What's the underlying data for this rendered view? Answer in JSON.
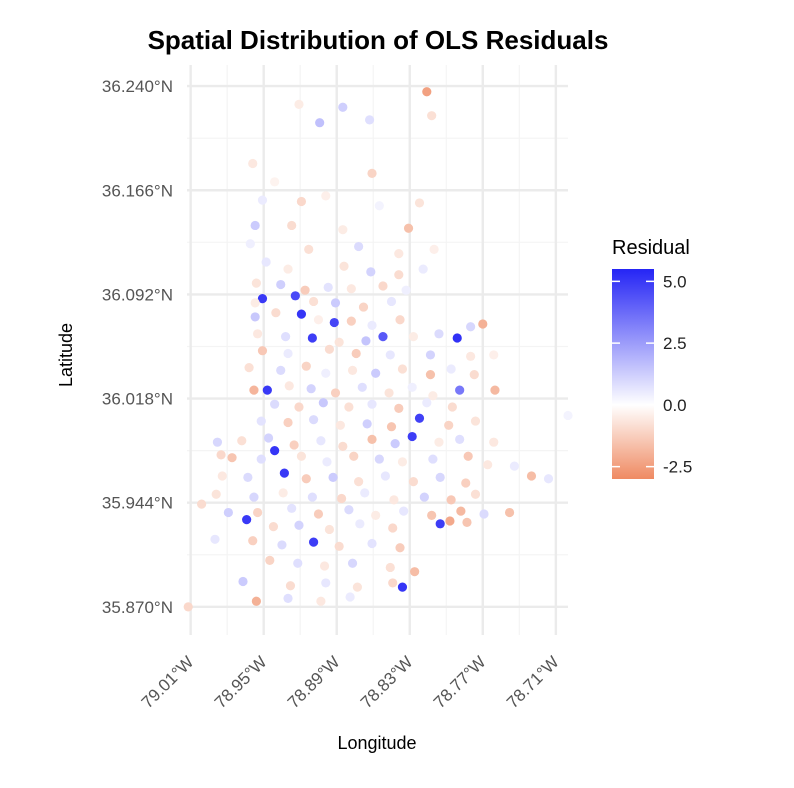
{
  "chart_data": {
    "type": "scatter",
    "title": "Spatial Distribution of OLS Residuals",
    "xlabel": "Longitude",
    "ylabel": "Latitude",
    "xlim": [
      -79.013,
      -78.7
    ],
    "ylim": [
      35.85,
      36.255
    ],
    "x_ticks": [
      -79.01,
      -78.95,
      -78.89,
      -78.83,
      -78.77,
      -78.71
    ],
    "x_tick_labels": [
      "79.01°W",
      "78.95°W",
      "78.89°W",
      "78.83°W",
      "78.77°W",
      "78.71°W"
    ],
    "y_ticks": [
      35.87,
      35.944,
      36.018,
      36.092,
      36.166,
      36.24
    ],
    "y_tick_labels": [
      "35.870°N",
      "35.944°N",
      "36.018°N",
      "36.092°N",
      "36.166°N",
      "36.240°N"
    ],
    "grid": true,
    "legend": {
      "title": "Residual",
      "placement": "right",
      "ticks": [
        5.0,
        2.5,
        0.0,
        -2.5
      ],
      "tick_labels": [
        "5.0",
        "2.5",
        "0.0",
        "-2.5"
      ],
      "range": [
        -3.0,
        5.5
      ],
      "color_low": "#ef8a62",
      "color_mid": "#ffffff",
      "color_high": "#2525f5"
    },
    "points": [
      {
        "lon": -78.816,
        "lat": 36.236,
        "residual": -2.4
      },
      {
        "lon": -78.921,
        "lat": 36.227,
        "residual": -0.5
      },
      {
        "lon": -78.885,
        "lat": 36.225,
        "residual": 1.2
      },
      {
        "lon": -78.904,
        "lat": 36.214,
        "residual": 1.6
      },
      {
        "lon": -78.863,
        "lat": 36.216,
        "residual": 0.8
      },
      {
        "lon": -78.812,
        "lat": 36.219,
        "residual": -0.8
      },
      {
        "lon": -78.959,
        "lat": 36.185,
        "residual": -0.6
      },
      {
        "lon": -78.861,
        "lat": 36.178,
        "residual": -1.1
      },
      {
        "lon": -78.941,
        "lat": 36.172,
        "residual": -0.3
      },
      {
        "lon": -78.899,
        "lat": 36.162,
        "residual": -0.4
      },
      {
        "lon": -78.951,
        "lat": 36.159,
        "residual": 0.5
      },
      {
        "lon": -78.919,
        "lat": 36.158,
        "residual": -1.0
      },
      {
        "lon": -78.822,
        "lat": 36.157,
        "residual": -0.7
      },
      {
        "lon": -78.855,
        "lat": 36.155,
        "residual": 0.3
      },
      {
        "lon": -78.957,
        "lat": 36.141,
        "residual": 1.3
      },
      {
        "lon": -78.927,
        "lat": 36.141,
        "residual": -0.9
      },
      {
        "lon": -78.885,
        "lat": 36.138,
        "residual": -0.5
      },
      {
        "lon": -78.831,
        "lat": 36.139,
        "residual": -1.6
      },
      {
        "lon": -78.961,
        "lat": 36.128,
        "residual": 0.4
      },
      {
        "lon": -78.913,
        "lat": 36.124,
        "residual": -0.8
      },
      {
        "lon": -78.872,
        "lat": 36.126,
        "residual": 0.9
      },
      {
        "lon": -78.839,
        "lat": 36.121,
        "residual": -0.6
      },
      {
        "lon": -78.81,
        "lat": 36.124,
        "residual": -0.4
      },
      {
        "lon": -78.948,
        "lat": 36.115,
        "residual": 0.6
      },
      {
        "lon": -78.93,
        "lat": 36.11,
        "residual": -0.5
      },
      {
        "lon": -78.884,
        "lat": 36.112,
        "residual": -0.7
      },
      {
        "lon": -78.862,
        "lat": 36.108,
        "residual": 1.1
      },
      {
        "lon": -78.839,
        "lat": 36.106,
        "residual": -0.9
      },
      {
        "lon": -78.819,
        "lat": 36.11,
        "residual": 0.5
      },
      {
        "lon": -78.956,
        "lat": 36.1,
        "residual": -0.7
      },
      {
        "lon": -78.936,
        "lat": 36.099,
        "residual": 1.2
      },
      {
        "lon": -78.916,
        "lat": 36.095,
        "residual": -1.3
      },
      {
        "lon": -78.897,
        "lat": 36.097,
        "residual": 0.7
      },
      {
        "lon": -78.878,
        "lat": 36.096,
        "residual": -0.6
      },
      {
        "lon": -78.852,
        "lat": 36.098,
        "residual": -1.0
      },
      {
        "lon": -78.833,
        "lat": 36.095,
        "residual": 0.4
      },
      {
        "lon": -78.951,
        "lat": 36.089,
        "residual": 5.0
      },
      {
        "lon": -78.957,
        "lat": 36.086,
        "residual": -0.5
      },
      {
        "lon": -78.924,
        "lat": 36.091,
        "residual": 4.6
      },
      {
        "lon": -78.909,
        "lat": 36.087,
        "residual": -0.8
      },
      {
        "lon": -78.891,
        "lat": 36.086,
        "residual": 1.3
      },
      {
        "lon": -78.868,
        "lat": 36.083,
        "residual": -1.1
      },
      {
        "lon": -78.845,
        "lat": 36.087,
        "residual": 0.6
      },
      {
        "lon": -78.957,
        "lat": 36.076,
        "residual": 1.4
      },
      {
        "lon": -78.94,
        "lat": 36.079,
        "residual": -0.9
      },
      {
        "lon": -78.919,
        "lat": 36.078,
        "residual": 5.1
      },
      {
        "lon": -78.905,
        "lat": 36.074,
        "residual": -0.4
      },
      {
        "lon": -78.892,
        "lat": 36.072,
        "residual": 4.7
      },
      {
        "lon": -78.878,
        "lat": 36.073,
        "residual": -1.2
      },
      {
        "lon": -78.861,
        "lat": 36.07,
        "residual": 0.5
      },
      {
        "lon": -78.838,
        "lat": 36.074,
        "residual": -1.0
      },
      {
        "lon": -78.77,
        "lat": 36.071,
        "residual": -2.0
      },
      {
        "lon": -78.78,
        "lat": 36.069,
        "residual": 1.0
      },
      {
        "lon": -78.955,
        "lat": 36.064,
        "residual": -0.6
      },
      {
        "lon": -78.932,
        "lat": 36.062,
        "residual": 0.8
      },
      {
        "lon": -78.91,
        "lat": 36.061,
        "residual": 4.9
      },
      {
        "lon": -78.888,
        "lat": 36.058,
        "residual": -0.7
      },
      {
        "lon": -78.866,
        "lat": 36.059,
        "residual": 1.5
      },
      {
        "lon": -78.852,
        "lat": 36.062,
        "residual": 4.2
      },
      {
        "lon": -78.827,
        "lat": 36.062,
        "residual": -0.5
      },
      {
        "lon": -78.806,
        "lat": 36.064,
        "residual": 0.9
      },
      {
        "lon": -78.791,
        "lat": 36.061,
        "residual": 5.2
      },
      {
        "lon": -78.951,
        "lat": 36.052,
        "residual": -1.4
      },
      {
        "lon": -78.93,
        "lat": 36.05,
        "residual": 0.5
      },
      {
        "lon": -78.896,
        "lat": 36.053,
        "residual": -0.9
      },
      {
        "lon": -78.874,
        "lat": 36.05,
        "residual": -1.3
      },
      {
        "lon": -78.846,
        "lat": 36.049,
        "residual": 0.6
      },
      {
        "lon": -78.813,
        "lat": 36.049,
        "residual": 1.1
      },
      {
        "lon": -78.78,
        "lat": 36.048,
        "residual": -0.6
      },
      {
        "lon": -78.761,
        "lat": 36.049,
        "residual": -0.4
      },
      {
        "lon": -78.962,
        "lat": 36.04,
        "residual": -0.8
      },
      {
        "lon": -78.936,
        "lat": 36.038,
        "residual": 0.9
      },
      {
        "lon": -78.915,
        "lat": 36.041,
        "residual": -1.1
      },
      {
        "lon": -78.899,
        "lat": 36.036,
        "residual": 0.4
      },
      {
        "lon": -78.877,
        "lat": 36.038,
        "residual": -0.6
      },
      {
        "lon": -78.858,
        "lat": 36.036,
        "residual": 1.3
      },
      {
        "lon": -78.836,
        "lat": 36.039,
        "residual": -0.8
      },
      {
        "lon": -78.813,
        "lat": 36.035,
        "residual": -1.6
      },
      {
        "lon": -78.796,
        "lat": 36.039,
        "residual": 0.5
      },
      {
        "lon": -78.777,
        "lat": 36.035,
        "residual": -0.9
      },
      {
        "lon": -78.958,
        "lat": 36.024,
        "residual": -1.9
      },
      {
        "lon": -78.947,
        "lat": 36.024,
        "residual": 5.0
      },
      {
        "lon": -78.929,
        "lat": 36.027,
        "residual": -0.6
      },
      {
        "lon": -78.911,
        "lat": 36.025,
        "residual": 1.1
      },
      {
        "lon": -78.891,
        "lat": 36.022,
        "residual": -1.2
      },
      {
        "lon": -78.869,
        "lat": 36.026,
        "residual": 0.8
      },
      {
        "lon": -78.847,
        "lat": 36.022,
        "residual": -0.7
      },
      {
        "lon": -78.828,
        "lat": 36.026,
        "residual": 0.4
      },
      {
        "lon": -78.811,
        "lat": 36.02,
        "residual": -0.5
      },
      {
        "lon": -78.789,
        "lat": 36.024,
        "residual": 3.4
      },
      {
        "lon": -78.76,
        "lat": 36.024,
        "residual": -1.8
      },
      {
        "lon": -78.7,
        "lat": 36.006,
        "residual": 0.3
      },
      {
        "lon": -78.941,
        "lat": 36.014,
        "residual": 0.9
      },
      {
        "lon": -78.921,
        "lat": 36.012,
        "residual": -1.0
      },
      {
        "lon": -78.901,
        "lat": 36.015,
        "residual": 1.4
      },
      {
        "lon": -78.88,
        "lat": 36.012,
        "residual": -0.8
      },
      {
        "lon": -78.861,
        "lat": 36.014,
        "residual": 0.6
      },
      {
        "lon": -78.839,
        "lat": 36.011,
        "residual": -1.3
      },
      {
        "lon": -78.816,
        "lat": 36.015,
        "residual": 0.5
      },
      {
        "lon": -78.795,
        "lat": 36.012,
        "residual": -0.9
      },
      {
        "lon": -78.952,
        "lat": 36.002,
        "residual": 0.7
      },
      {
        "lon": -78.93,
        "lat": 36.001,
        "residual": -1.2
      },
      {
        "lon": -78.909,
        "lat": 36.003,
        "residual": 0.9
      },
      {
        "lon": -78.887,
        "lat": 35.999,
        "residual": -0.6
      },
      {
        "lon": -78.865,
        "lat": 36.0,
        "residual": 1.2
      },
      {
        "lon": -78.845,
        "lat": 35.998,
        "residual": -1.5
      },
      {
        "lon": -78.822,
        "lat": 36.004,
        "residual": 4.8
      },
      {
        "lon": -78.798,
        "lat": 35.999,
        "residual": -1.1
      },
      {
        "lon": -78.776,
        "lat": 36.002,
        "residual": -0.7
      },
      {
        "lon": -78.988,
        "lat": 35.987,
        "residual": 1.0
      },
      {
        "lon": -78.968,
        "lat": 35.988,
        "residual": -0.8
      },
      {
        "lon": -78.946,
        "lat": 35.99,
        "residual": 1.1
      },
      {
        "lon": -78.925,
        "lat": 35.985,
        "residual": -1.2
      },
      {
        "lon": -78.903,
        "lat": 35.988,
        "residual": 0.6
      },
      {
        "lon": -78.885,
        "lat": 35.984,
        "residual": -0.9
      },
      {
        "lon": -78.861,
        "lat": 35.989,
        "residual": -1.6
      },
      {
        "lon": -78.842,
        "lat": 35.986,
        "residual": 1.3
      },
      {
        "lon": -78.828,
        "lat": 35.991,
        "residual": 4.9
      },
      {
        "lon": -78.806,
        "lat": 35.987,
        "residual": -0.5
      },
      {
        "lon": -78.789,
        "lat": 35.989,
        "residual": 0.8
      },
      {
        "lon": -78.761,
        "lat": 35.987,
        "residual": -0.6
      },
      {
        "lon": -78.985,
        "lat": 35.978,
        "residual": -1.0
      },
      {
        "lon": -78.976,
        "lat": 35.976,
        "residual": -1.5
      },
      {
        "lon": -78.952,
        "lat": 35.975,
        "residual": 0.8
      },
      {
        "lon": -78.941,
        "lat": 35.981,
        "residual": 5.1
      },
      {
        "lon": -78.919,
        "lat": 35.977,
        "residual": -0.7
      },
      {
        "lon": -78.898,
        "lat": 35.973,
        "residual": 0.5
      },
      {
        "lon": -78.876,
        "lat": 35.977,
        "residual": -1.1
      },
      {
        "lon": -78.855,
        "lat": 35.975,
        "residual": 1.0
      },
      {
        "lon": -78.836,
        "lat": 35.973,
        "residual": -0.5
      },
      {
        "lon": -78.811,
        "lat": 35.975,
        "residual": 0.8
      },
      {
        "lon": -78.782,
        "lat": 35.977,
        "residual": -1.4
      },
      {
        "lon": -78.766,
        "lat": 35.971,
        "residual": -0.6
      },
      {
        "lon": -78.744,
        "lat": 35.97,
        "residual": 0.5
      },
      {
        "lon": -78.984,
        "lat": 35.963,
        "residual": -0.6
      },
      {
        "lon": -78.963,
        "lat": 35.962,
        "residual": 0.9
      },
      {
        "lon": -78.933,
        "lat": 35.965,
        "residual": 5.0
      },
      {
        "lon": -78.915,
        "lat": 35.961,
        "residual": -1.3
      },
      {
        "lon": -78.893,
        "lat": 35.962,
        "residual": 1.3
      },
      {
        "lon": -78.872,
        "lat": 35.959,
        "residual": -0.8
      },
      {
        "lon": -78.85,
        "lat": 35.963,
        "residual": 0.6
      },
      {
        "lon": -78.827,
        "lat": 35.959,
        "residual": -0.9
      },
      {
        "lon": -78.805,
        "lat": 35.962,
        "residual": 1.0
      },
      {
        "lon": -78.784,
        "lat": 35.958,
        "residual": -1.2
      },
      {
        "lon": -78.73,
        "lat": 35.963,
        "residual": -1.7
      },
      {
        "lon": -78.716,
        "lat": 35.961,
        "residual": 0.6
      },
      {
        "lon": -78.989,
        "lat": 35.95,
        "residual": -0.7
      },
      {
        "lon": -78.958,
        "lat": 35.948,
        "residual": 1.0
      },
      {
        "lon": -78.934,
        "lat": 35.951,
        "residual": -0.5
      },
      {
        "lon": -78.91,
        "lat": 35.948,
        "residual": 0.8
      },
      {
        "lon": -78.886,
        "lat": 35.947,
        "residual": -1.0
      },
      {
        "lon": -78.867,
        "lat": 35.951,
        "residual": 0.5
      },
      {
        "lon": -78.843,
        "lat": 35.946,
        "residual": -0.6
      },
      {
        "lon": -78.818,
        "lat": 35.948,
        "residual": 1.1
      },
      {
        "lon": -78.796,
        "lat": 35.946,
        "residual": -1.4
      },
      {
        "lon": -78.776,
        "lat": 35.95,
        "residual": -0.8
      },
      {
        "lon": -79.001,
        "lat": 35.943,
        "residual": -0.9
      },
      {
        "lon": -78.979,
        "lat": 35.937,
        "residual": 1.2
      },
      {
        "lon": -78.955,
        "lat": 35.937,
        "residual": -1.1
      },
      {
        "lon": -78.927,
        "lat": 35.94,
        "residual": 0.7
      },
      {
        "lon": -78.905,
        "lat": 35.936,
        "residual": -1.3
      },
      {
        "lon": -78.88,
        "lat": 35.939,
        "residual": 0.9
      },
      {
        "lon": -78.858,
        "lat": 35.935,
        "residual": -0.5
      },
      {
        "lon": -78.835,
        "lat": 35.938,
        "residual": 0.6
      },
      {
        "lon": -78.812,
        "lat": 35.935,
        "residual": -1.5
      },
      {
        "lon": -78.788,
        "lat": 35.938,
        "residual": -1.8
      },
      {
        "lon": -78.769,
        "lat": 35.936,
        "residual": 0.9
      },
      {
        "lon": -78.748,
        "lat": 35.937,
        "residual": -1.6
      },
      {
        "lon": -78.964,
        "lat": 35.932,
        "residual": 5.0
      },
      {
        "lon": -78.942,
        "lat": 35.927,
        "residual": -0.9
      },
      {
        "lon": -78.921,
        "lat": 35.928,
        "residual": 1.1
      },
      {
        "lon": -78.896,
        "lat": 35.925,
        "residual": -0.7
      },
      {
        "lon": -78.871,
        "lat": 35.929,
        "residual": 0.5
      },
      {
        "lon": -78.844,
        "lat": 35.926,
        "residual": -1.0
      },
      {
        "lon": -78.805,
        "lat": 35.929,
        "residual": 4.9
      },
      {
        "lon": -78.797,
        "lat": 35.931,
        "residual": -2.2
      },
      {
        "lon": -78.783,
        "lat": 35.93,
        "residual": -1.5
      },
      {
        "lon": -78.99,
        "lat": 35.918,
        "residual": 0.6
      },
      {
        "lon": -78.959,
        "lat": 35.917,
        "residual": -1.2
      },
      {
        "lon": -78.935,
        "lat": 35.914,
        "residual": 0.9
      },
      {
        "lon": -78.909,
        "lat": 35.916,
        "residual": 4.9
      },
      {
        "lon": -78.888,
        "lat": 35.913,
        "residual": -0.9
      },
      {
        "lon": -78.861,
        "lat": 35.915,
        "residual": 0.7
      },
      {
        "lon": -78.838,
        "lat": 35.912,
        "residual": -1.3
      },
      {
        "lon": -78.945,
        "lat": 35.903,
        "residual": -1.1
      },
      {
        "lon": -78.922,
        "lat": 35.901,
        "residual": 0.8
      },
      {
        "lon": -78.9,
        "lat": 35.899,
        "residual": -0.6
      },
      {
        "lon": -78.877,
        "lat": 35.901,
        "residual": 1.0
      },
      {
        "lon": -78.846,
        "lat": 35.898,
        "residual": -0.8
      },
      {
        "lon": -78.826,
        "lat": 35.895,
        "residual": -1.7
      },
      {
        "lon": -78.967,
        "lat": 35.888,
        "residual": 1.3
      },
      {
        "lon": -78.928,
        "lat": 35.885,
        "residual": -0.9
      },
      {
        "lon": -78.899,
        "lat": 35.887,
        "residual": 0.6
      },
      {
        "lon": -78.873,
        "lat": 35.884,
        "residual": -0.7
      },
      {
        "lon": -78.836,
        "lat": 35.884,
        "residual": 5.1
      },
      {
        "lon": -78.844,
        "lat": 35.887,
        "residual": -1.0
      },
      {
        "lon": -78.956,
        "lat": 35.874,
        "residual": -2.0
      },
      {
        "lon": -78.93,
        "lat": 35.876,
        "residual": 0.8
      },
      {
        "lon": -78.903,
        "lat": 35.874,
        "residual": -0.6
      },
      {
        "lon": -78.879,
        "lat": 35.877,
        "residual": 0.5
      },
      {
        "lon": -79.012,
        "lat": 35.87,
        "residual": -1.0
      }
    ]
  }
}
